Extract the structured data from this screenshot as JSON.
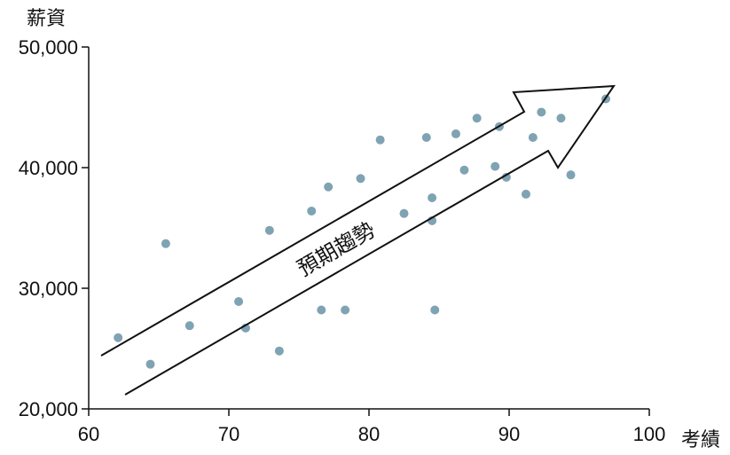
{
  "chart_data": {
    "type": "scatter",
    "xlabel": "考績",
    "ylabel": "薪資",
    "annotation": "預期趨勢",
    "xlim": [
      60,
      100
    ],
    "ylim": [
      20000,
      50000
    ],
    "x_ticks": [
      "60",
      "70",
      "80",
      "90",
      "100"
    ],
    "y_ticks": [
      "20,000",
      "30,000",
      "40,000",
      "50,000"
    ],
    "point_color": "#7fa3b3",
    "arrow_direction": "upward toward higher 考績 and 薪資",
    "points": [
      {
        "x": 62.1,
        "y": 25900
      },
      {
        "x": 64.4,
        "y": 23700
      },
      {
        "x": 65.5,
        "y": 33700
      },
      {
        "x": 67.2,
        "y": 26900
      },
      {
        "x": 70.7,
        "y": 28900
      },
      {
        "x": 71.2,
        "y": 26700
      },
      {
        "x": 72.9,
        "y": 34800
      },
      {
        "x": 73.6,
        "y": 24800
      },
      {
        "x": 75.9,
        "y": 36400
      },
      {
        "x": 76.6,
        "y": 28200
      },
      {
        "x": 77.1,
        "y": 38400
      },
      {
        "x": 78.3,
        "y": 28200
      },
      {
        "x": 79.4,
        "y": 39100
      },
      {
        "x": 80.8,
        "y": 42300
      },
      {
        "x": 82.5,
        "y": 36200
      },
      {
        "x": 84.1,
        "y": 42500
      },
      {
        "x": 84.5,
        "y": 37500
      },
      {
        "x": 84.5,
        "y": 35600
      },
      {
        "x": 84.7,
        "y": 28200
      },
      {
        "x": 86.2,
        "y": 42800
      },
      {
        "x": 86.8,
        "y": 39800
      },
      {
        "x": 87.7,
        "y": 44100
      },
      {
        "x": 89.0,
        "y": 40100
      },
      {
        "x": 89.3,
        "y": 43400
      },
      {
        "x": 89.8,
        "y": 39200
      },
      {
        "x": 91.2,
        "y": 37800
      },
      {
        "x": 91.7,
        "y": 42500
      },
      {
        "x": 92.3,
        "y": 44600
      },
      {
        "x": 93.7,
        "y": 44100
      },
      {
        "x": 94.4,
        "y": 39400
      },
      {
        "x": 96.9,
        "y": 45700
      }
    ]
  }
}
